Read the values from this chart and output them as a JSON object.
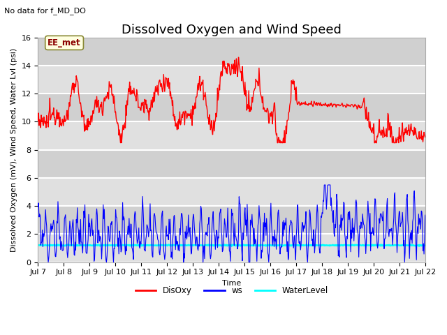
{
  "title": "Dissolved Oxygen and Wind Speed",
  "subtitle": "No data for f_MD_DO",
  "xlabel": "Time",
  "ylabel": "Dissolved Oxygen (mV), Wind Speed, Water Lvl (psi)",
  "ylim": [
    0,
    16
  ],
  "yticks": [
    0,
    2,
    4,
    6,
    8,
    10,
    12,
    14,
    16
  ],
  "xtick_labels": [
    "Jul 7",
    "Jul 8",
    "Jul 9",
    "Jul 10",
    "Jul 11",
    "Jul 12",
    "Jul 13",
    "Jul 14",
    "Jul 15",
    "Jul 16",
    "Jul 17",
    "Jul 18",
    "Jul 19",
    "Jul 20",
    "Jul 21",
    "Jul 22"
  ],
  "legend_labels": [
    "DisOxy",
    "ws",
    "WaterLevel"
  ],
  "disoxy_color": "red",
  "ws_color": "blue",
  "waterlevel_color": "cyan",
  "waterlevel_value": 1.2,
  "annotation_text": "EE_met",
  "background_color": "#e8e8e8",
  "grid_color": "white",
  "title_fontsize": 13,
  "label_fontsize": 8,
  "tick_fontsize": 8
}
